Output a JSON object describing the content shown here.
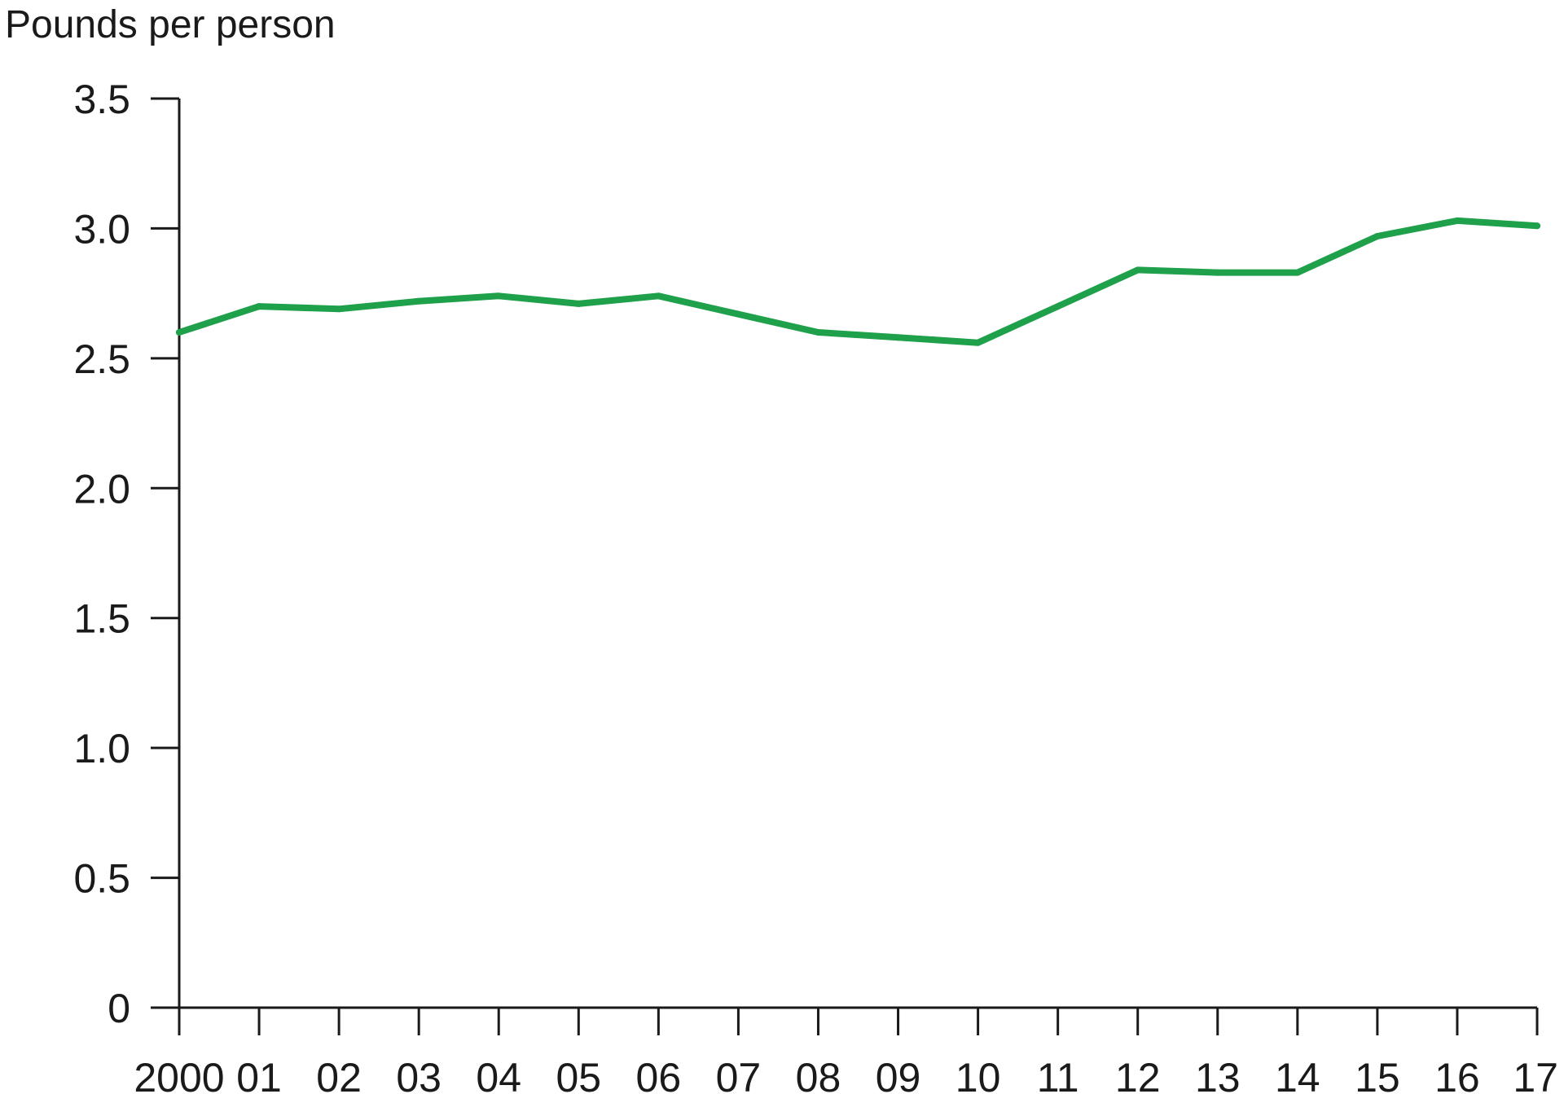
{
  "chart_data": {
    "type": "line",
    "title": "",
    "xlabel": "",
    "ylabel": "Pounds per person",
    "x_tick_labels": [
      "2000",
      "01",
      "02",
      "03",
      "04",
      "05",
      "06",
      "07",
      "08",
      "09",
      "10",
      "11",
      "12",
      "13",
      "14",
      "15",
      "16",
      "17"
    ],
    "y_tick_labels": [
      "0",
      "0.5",
      "1.0",
      "1.5",
      "2.0",
      "2.5",
      "3.0",
      "3.5"
    ],
    "y_ticks": [
      0,
      0.5,
      1.0,
      1.5,
      2.0,
      2.5,
      3.0,
      3.5
    ],
    "ylim": [
      0,
      3.5
    ],
    "xlim": [
      2000,
      2017
    ],
    "grid": false,
    "legend": "none",
    "series": [
      {
        "color": "#1fa04a",
        "x": [
          2000,
          2001,
          2002,
          2003,
          2004,
          2005,
          2006,
          2007,
          2008,
          2009,
          2010,
          2011,
          2012,
          2013,
          2014,
          2015,
          2016,
          2017
        ],
        "values": [
          2.6,
          2.7,
          2.69,
          2.72,
          2.74,
          2.71,
          2.74,
          2.67,
          2.6,
          2.58,
          2.56,
          2.7,
          2.84,
          2.83,
          2.83,
          2.97,
          3.03,
          3.01
        ]
      }
    ],
    "axis_color": "#1a1a1a"
  }
}
